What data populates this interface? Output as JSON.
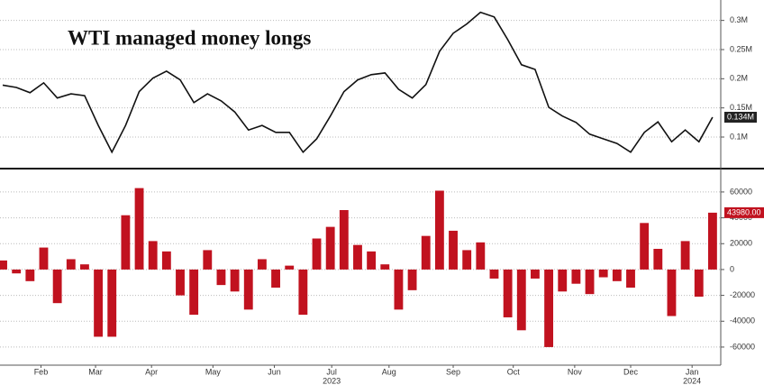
{
  "chart_data": [
    {
      "type": "line",
      "title": "WTI managed money longs",
      "color": "#111111",
      "values": [
        189000,
        185000,
        176000,
        193000,
        167000,
        174000,
        171000,
        120000,
        74000,
        120000,
        178000,
        201000,
        213000,
        198000,
        159000,
        174000,
        162000,
        143000,
        112000,
        120000,
        108000,
        108000,
        74000,
        97000,
        136000,
        178000,
        198000,
        207000,
        210000,
        182000,
        167000,
        190000,
        247000,
        278000,
        294000,
        314000,
        306000,
        267000,
        224000,
        216000,
        151000,
        136000,
        125000,
        105000,
        97000,
        89000,
        74000,
        108000,
        126000,
        92000,
        112000,
        92000,
        134000
      ],
      "last_label": "0.134M",
      "ylim": [
        49000,
        335000
      ],
      "yticks": [
        {
          "value": 100000,
          "label": "0.1M"
        },
        {
          "value": 150000,
          "label": "0.15M"
        },
        {
          "value": 200000,
          "label": "0.2M"
        },
        {
          "value": 250000,
          "label": "0.25M"
        },
        {
          "value": 300000,
          "label": "0.3M"
        }
      ],
      "xlim": [
        -0.2,
        52.6
      ],
      "grid": true
    },
    {
      "type": "bar",
      "color": "#c1121f",
      "values": [
        7000,
        -3000,
        -9000,
        17000,
        -26000,
        8000,
        4000,
        -52000,
        -52000,
        42000,
        63000,
        22000,
        14000,
        -20000,
        -35000,
        15000,
        -12000,
        -17000,
        -31000,
        8000,
        -14000,
        3000,
        -35000,
        24000,
        33000,
        46000,
        19000,
        14000,
        4000,
        -31000,
        -16000,
        26000,
        61000,
        30000,
        15000,
        21000,
        -7000,
        -37000,
        -47000,
        -7000,
        -60000,
        -17000,
        -11000,
        -19000,
        -6000,
        -9000,
        -14000,
        36000,
        16000,
        -36000,
        22000,
        -21000,
        43980
      ],
      "last_label": "43980.00",
      "ylim": [
        -74000,
        72500
      ],
      "yticks": [
        60000,
        40000,
        20000,
        0,
        -20000,
        -40000,
        -60000
      ],
      "xlim": [
        -0.2,
        52.6
      ],
      "xticks": [
        {
          "value": 2.8,
          "label": "Feb"
        },
        {
          "value": 6.8,
          "label": "Mar"
        },
        {
          "value": 10.9,
          "label": "Apr"
        },
        {
          "value": 15.4,
          "label": "May"
        },
        {
          "value": 19.9,
          "label": "Jun"
        },
        {
          "value": 24.1,
          "label": "Jul"
        },
        {
          "value": 28.3,
          "label": "Aug"
        },
        {
          "value": 33.0,
          "label": "Sep"
        },
        {
          "value": 37.4,
          "label": "Oct"
        },
        {
          "value": 41.9,
          "label": "Nov"
        },
        {
          "value": 46.0,
          "label": "Dec"
        },
        {
          "value": 50.5,
          "label": "Jan"
        }
      ],
      "year_labels": [
        {
          "value": 24.1,
          "label": "2023"
        },
        {
          "value": 50.5,
          "label": "2024"
        }
      ],
      "grid": true
    }
  ]
}
